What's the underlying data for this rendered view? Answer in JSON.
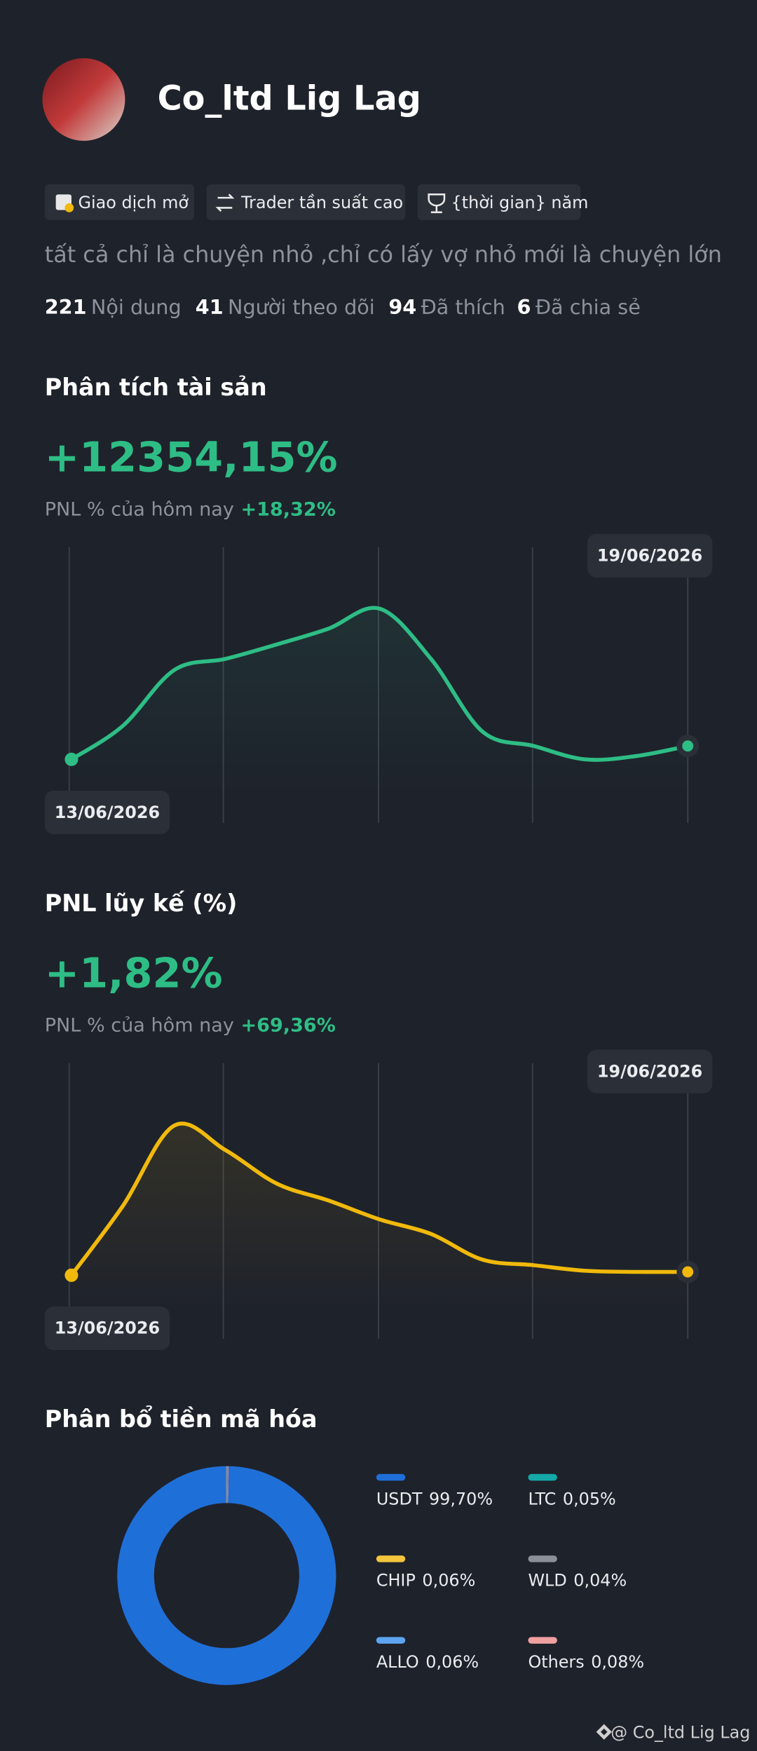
{
  "profile": {
    "name": "Co_ltd Lig Lag",
    "tags": [
      "Giao dịch mở",
      "Trader tần suất cao",
      "{thời gian} năm"
    ],
    "bio": "tất cả chỉ là chuyện nhỏ ,chỉ có lấy vợ nhỏ mới là chuyện lớn",
    "stats": [
      {
        "value": 221,
        "label": "Nội dung"
      },
      {
        "value": 41,
        "label": "Người theo dõi"
      },
      {
        "value": 94,
        "label": "Đã thích"
      },
      {
        "value": 6,
        "label": "Đã chia sẻ"
      }
    ]
  },
  "chart_data": [
    {
      "type": "line",
      "title": "Phân tích tài sản",
      "headline": "+12354,15%",
      "subtitle": "PNL % của hôm nay",
      "today": "+18,32%",
      "start_label": "13/06/2026",
      "end_label": "19/06/2026",
      "color": "#2ebd85",
      "values": [
        20,
        50,
        100,
        110,
        123,
        137,
        155,
        110,
        45,
        32,
        20,
        23,
        32
      ]
    },
    {
      "type": "line",
      "title": "PNL lũy kế (%)",
      "headline": "+1,82%",
      "subtitle": "PNL % của hôm nay",
      "today": "+69,36%",
      "start_label": "13/06/2026",
      "end_label": "19/06/2026",
      "color": "#f0b90b",
      "values": [
        18,
        80,
        152,
        130,
        100,
        85,
        68,
        55,
        32,
        27,
        22,
        21,
        21
      ]
    },
    {
      "type": "donut",
      "title": "Phân bổ tiền mã hóa",
      "categories": [
        "USDT",
        "LTC",
        "CHIP",
        "WLD",
        "ALLO",
        "Others"
      ],
      "values": [
        99.7,
        0.05,
        0.06,
        0.04,
        0.06,
        0.08
      ],
      "value_labels": [
        "99,70%",
        "0,05%",
        "0,06%",
        "0,04%",
        "0,06%",
        "0,08%"
      ],
      "colors": [
        "#1f6fd8",
        "#14a8a8",
        "#f2c53d",
        "#8a8f98",
        "#5ea4f0",
        "#f0a0a0"
      ]
    }
  ],
  "footer": "@ Co_ltd Lig Lag"
}
